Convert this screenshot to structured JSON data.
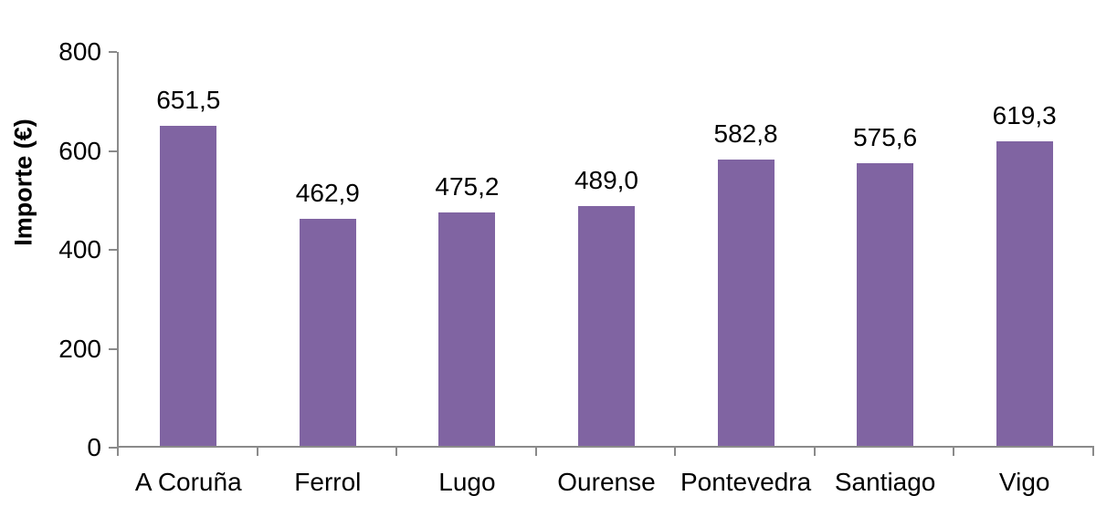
{
  "chart_data": {
    "type": "bar",
    "title": "",
    "categories": [
      "A Coruña",
      "Ferrol",
      "Lugo",
      "Ourense",
      "Pontevedra",
      "Santiago",
      "Vigo"
    ],
    "values": [
      651.5,
      462.9,
      475.2,
      489.0,
      582.8,
      575.6,
      619.3
    ],
    "value_labels": [
      "651,5",
      "462,9",
      "475,2",
      "489,0",
      "582,8",
      "575,6",
      "619,3"
    ],
    "xlabel": "",
    "ylabel": "Importe (€)",
    "ylim": [
      0,
      800
    ],
    "y_ticks": [
      0,
      200,
      400,
      600,
      800
    ],
    "y_tick_labels": [
      "0",
      "200",
      "400",
      "600",
      "800"
    ],
    "grid": false,
    "legend": false,
    "decimal_separator": ",",
    "colors": {
      "bar": "#8064A2",
      "axis": "#8A8A8A",
      "text": "#000000",
      "background": "#FFFFFF"
    }
  }
}
